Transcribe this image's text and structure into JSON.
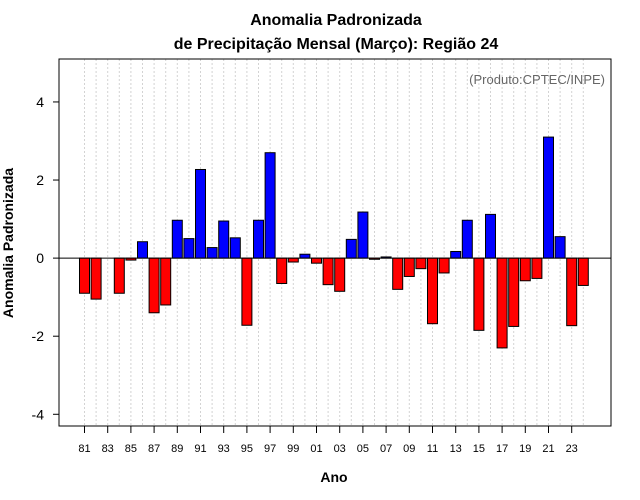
{
  "chart_data": {
    "type": "bar",
    "title": "Anomalia Padronizada",
    "subtitle": "de Precipitação Mensal (Março): Região 24",
    "xlabel": "Ano",
    "ylabel": "Anomalia Padronizada",
    "source": "(Produto:CPTEC/INPE)",
    "ylim": [
      -4.3,
      5.1
    ],
    "yticks": [
      "-4",
      "-2",
      "0",
      "2",
      "4"
    ],
    "grid": "vertical dotted",
    "positive_color": "#0000ff",
    "negative_color": "#ff0000",
    "categories": [
      "81",
      "82",
      "83",
      "84",
      "85",
      "86",
      "87",
      "88",
      "89",
      "90",
      "91",
      "92",
      "93",
      "94",
      "95",
      "96",
      "97",
      "98",
      "99",
      "00",
      "01",
      "02",
      "03",
      "04",
      "05",
      "06",
      "07",
      "08",
      "09",
      "10",
      "11",
      "12",
      "13",
      "14",
      "15",
      "16",
      "17",
      "18",
      "19",
      "20",
      "21",
      "22",
      "23",
      "24"
    ],
    "xtick_labels": [
      "81",
      "83",
      "85",
      "87",
      "89",
      "91",
      "93",
      "95",
      "97",
      "99",
      "01",
      "03",
      "05",
      "07",
      "09",
      "11",
      "13",
      "15",
      "17",
      "19",
      "21",
      "23"
    ],
    "values": [
      -0.9,
      -1.05,
      0.0,
      -0.9,
      -0.05,
      0.42,
      -1.4,
      -1.2,
      0.97,
      0.5,
      2.27,
      0.27,
      0.95,
      0.52,
      -1.72,
      0.97,
      2.7,
      -0.65,
      -0.1,
      0.1,
      -0.13,
      -0.68,
      -0.85,
      0.48,
      1.18,
      -0.03,
      0.03,
      -0.8,
      -0.47,
      -0.27,
      -1.68,
      -0.38,
      0.17,
      0.97,
      -1.85,
      1.12,
      -2.3,
      -1.75,
      -0.58,
      -0.52,
      3.1,
      0.55,
      -1.73,
      -0.7
    ]
  }
}
